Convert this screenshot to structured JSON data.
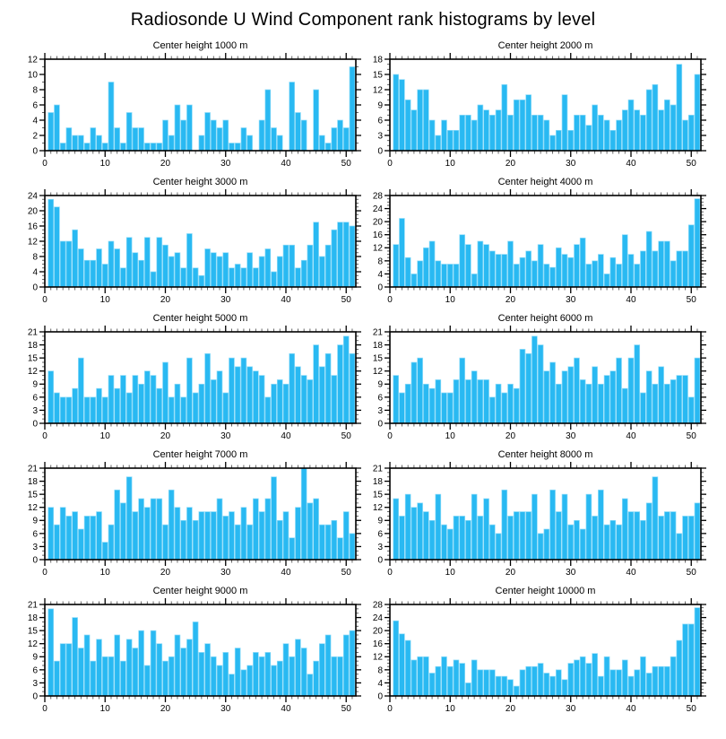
{
  "page_title": "Radiosonde U Wind Component rank histograms by level",
  "chart_data": {
    "type": "bar",
    "layout": "5x2 grid of rank histograms, shared style",
    "bar_color": "#29b9f2",
    "bar_edge_color": "#8fdcf9",
    "axis_color": "#000000",
    "minor_tick_color": "#555555",
    "x_ticks": [
      0,
      10,
      20,
      30,
      40,
      50
    ],
    "x_range": [
      0,
      51.6
    ],
    "x_minor_tick_interval": 1,
    "y_minor_tick_interval": 1,
    "grid": "off",
    "legend": "none",
    "charts": [
      {
        "title": "Center height 1000 m",
        "ylim": [
          0,
          12
        ],
        "ystep": 2,
        "values": [
          5,
          6,
          1,
          3,
          2,
          2,
          1,
          3,
          2,
          1,
          9,
          3,
          1,
          5,
          3,
          3,
          1,
          1,
          1,
          4,
          2,
          6,
          4,
          6,
          0,
          2,
          5,
          4,
          3,
          4,
          1,
          1,
          3,
          2,
          0,
          4,
          8,
          3,
          2,
          0,
          9,
          5,
          4,
          0,
          8,
          2,
          1,
          3,
          4,
          3,
          11
        ]
      },
      {
        "title": "Center height 2000 m",
        "ylim": [
          0,
          18
        ],
        "ystep": 3,
        "values": [
          15,
          14,
          10,
          8,
          12,
          12,
          6,
          3,
          6,
          4,
          4,
          7,
          7,
          6,
          9,
          8,
          7,
          8,
          13,
          7,
          10,
          10,
          11,
          7,
          7,
          6,
          3,
          4,
          11,
          4,
          7,
          7,
          5,
          9,
          7,
          6,
          4,
          6,
          8,
          10,
          8,
          7,
          12,
          13,
          8,
          10,
          9,
          17,
          6,
          7,
          15
        ]
      },
      {
        "title": "Center height 3000 m",
        "ylim": [
          0,
          24
        ],
        "ystep": 4,
        "values": [
          23,
          21,
          12,
          12,
          15,
          10,
          7,
          7,
          10,
          6,
          12,
          10,
          5,
          13,
          9,
          7,
          13,
          4,
          13,
          11,
          8,
          9,
          5,
          14,
          5,
          3,
          10,
          9,
          8,
          9,
          5,
          6,
          5,
          9,
          5,
          8,
          10,
          4,
          8,
          11,
          11,
          5,
          7,
          11,
          17,
          8,
          11,
          15,
          17,
          17,
          16
        ]
      },
      {
        "title": "Center height 4000 m",
        "ylim": [
          0,
          28
        ],
        "ystep": 4,
        "values": [
          13,
          21,
          9,
          4,
          8,
          12,
          14,
          8,
          7,
          7,
          7,
          16,
          13,
          4,
          14,
          13,
          11,
          10,
          10,
          14,
          7,
          9,
          11,
          8,
          13,
          7,
          6,
          12,
          10,
          9,
          13,
          15,
          7,
          8,
          10,
          4,
          9,
          7,
          16,
          10,
          7,
          11,
          17,
          11,
          14,
          14,
          8,
          11,
          11,
          19,
          27
        ]
      },
      {
        "title": "Center height 5000 m",
        "ylim": [
          0,
          21
        ],
        "ystep": 3,
        "values": [
          12,
          7,
          6,
          6,
          8,
          15,
          6,
          6,
          8,
          6,
          11,
          8,
          11,
          7,
          11,
          9,
          12,
          11,
          8,
          14,
          6,
          9,
          6,
          15,
          7,
          9,
          16,
          10,
          12,
          7,
          15,
          13,
          15,
          13,
          12,
          11,
          6,
          9,
          10,
          9,
          16,
          13,
          11,
          10,
          18,
          13,
          16,
          11,
          18,
          20,
          16
        ]
      },
      {
        "title": "Center height 6000 m",
        "ylim": [
          0,
          21
        ],
        "ystep": 3,
        "values": [
          11,
          7,
          9,
          14,
          15,
          9,
          8,
          10,
          7,
          7,
          10,
          15,
          10,
          12,
          10,
          10,
          6,
          9,
          7,
          9,
          8,
          17,
          16,
          20,
          18,
          12,
          14,
          9,
          12,
          13,
          15,
          10,
          9,
          13,
          9,
          11,
          12,
          15,
          8,
          15,
          18,
          7,
          12,
          9,
          13,
          9,
          10,
          11,
          11,
          6,
          15
        ]
      },
      {
        "title": "Center height 7000 m",
        "ylim": [
          0,
          21
        ],
        "ystep": 3,
        "values": [
          12,
          8,
          12,
          10,
          11,
          7,
          10,
          10,
          11,
          4,
          8,
          16,
          13,
          19,
          11,
          14,
          12,
          14,
          14,
          8,
          16,
          12,
          9,
          12,
          9,
          11,
          11,
          11,
          14,
          10,
          11,
          8,
          12,
          8,
          14,
          11,
          14,
          19,
          9,
          11,
          5,
          12,
          21,
          13,
          14,
          8,
          8,
          9,
          5,
          11,
          6
        ]
      },
      {
        "title": "Center height 8000 m",
        "ylim": [
          0,
          21
        ],
        "ystep": 3,
        "values": [
          14,
          10,
          15,
          12,
          13,
          11,
          9,
          15,
          8,
          7,
          10,
          10,
          9,
          15,
          10,
          14,
          8,
          6,
          16,
          10,
          11,
          11,
          11,
          15,
          6,
          7,
          16,
          11,
          15,
          8,
          9,
          7,
          15,
          10,
          16,
          8,
          9,
          8,
          14,
          11,
          11,
          9,
          13,
          19,
          10,
          11,
          11,
          6,
          10,
          10,
          13
        ]
      },
      {
        "title": "Center height 9000 m",
        "ylim": [
          0,
          21
        ],
        "ystep": 3,
        "values": [
          20,
          8,
          12,
          12,
          18,
          11,
          14,
          8,
          13,
          9,
          9,
          14,
          8,
          13,
          11,
          15,
          7,
          15,
          12,
          8,
          9,
          14,
          11,
          13,
          17,
          10,
          12,
          9,
          7,
          10,
          5,
          11,
          6,
          7,
          10,
          9,
          10,
          7,
          8,
          12,
          9,
          13,
          11,
          5,
          8,
          12,
          14,
          9,
          9,
          14,
          15
        ]
      },
      {
        "title": "Center height 10000 m",
        "ylim": [
          0,
          28
        ],
        "ystep": 4,
        "values": [
          23,
          19,
          17,
          11,
          12,
          12,
          7,
          9,
          12,
          9,
          11,
          10,
          4,
          11,
          8,
          8,
          8,
          6,
          6,
          5,
          3,
          8,
          9,
          9,
          10,
          7,
          6,
          8,
          5,
          10,
          11,
          12,
          10,
          13,
          6,
          12,
          8,
          8,
          11,
          6,
          8,
          12,
          7,
          9,
          9,
          9,
          12,
          17,
          22,
          22,
          27
        ]
      }
    ]
  }
}
